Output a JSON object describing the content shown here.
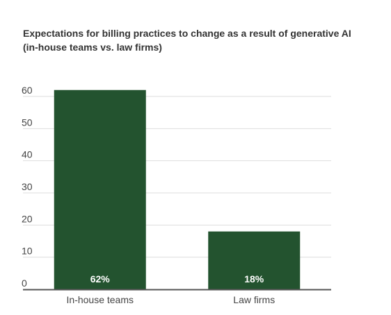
{
  "chart": {
    "title_line1": "Expectations for billing practices to change as a result of generative AI",
    "title_line2": "(in-house teams vs. law firms)"
  },
  "chart_data": {
    "type": "bar",
    "title": "Expectations for billing practices to change as a result of generative AI (in-house teams vs. law firms)",
    "categories": [
      "In-house teams",
      "Law firms"
    ],
    "values": [
      62,
      18
    ],
    "data_labels": [
      "62%",
      "18%"
    ],
    "ylim": [
      0,
      60
    ],
    "yticks": [
      0,
      10,
      20,
      30,
      40,
      50,
      60
    ],
    "grid": true,
    "legend": "none",
    "bar_color": "#23532F",
    "grid_color": "#dddddd",
    "axis_color": "#555555",
    "label_color": "#444444",
    "data_label_color": "#ffffff"
  }
}
